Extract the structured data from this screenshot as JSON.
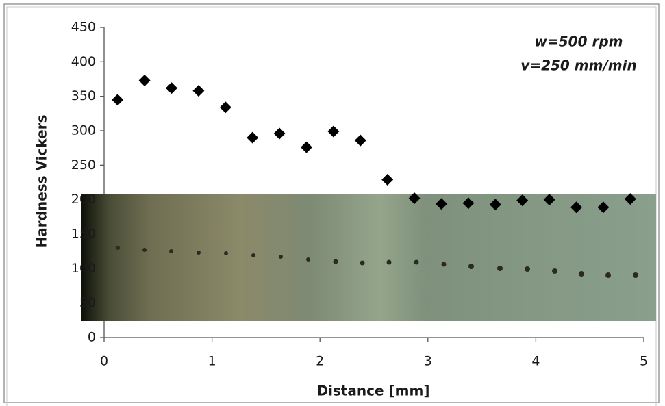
{
  "chart_data": {
    "type": "scatter",
    "x_label": "Distance [mm]",
    "y_label": "Hardness Vickers",
    "annotations": [
      "w=500 rpm",
      "v=250 mm/min"
    ],
    "xlim": [
      0,
      5
    ],
    "xticks": [
      0,
      1,
      2,
      3,
      4,
      5
    ],
    "ylim": [
      0,
      450
    ],
    "yticks": [
      0,
      50,
      100,
      150,
      200,
      250,
      300,
      350,
      400,
      450
    ],
    "grid": false,
    "series": [
      {
        "color": "#000000",
        "x": [
          0.125,
          0.375,
          0.625,
          0.875,
          1.125,
          1.375,
          1.625,
          1.875,
          2.125,
          2.375,
          2.625,
          2.875,
          3.125,
          3.375,
          3.625,
          3.875,
          4.125,
          4.375,
          4.625,
          4.875
        ],
        "values": [
          345,
          373,
          362,
          358,
          334,
          290,
          296,
          276,
          299,
          286,
          229,
          202,
          194,
          195,
          193,
          199,
          200,
          189,
          189,
          201
        ]
      }
    ]
  }
}
